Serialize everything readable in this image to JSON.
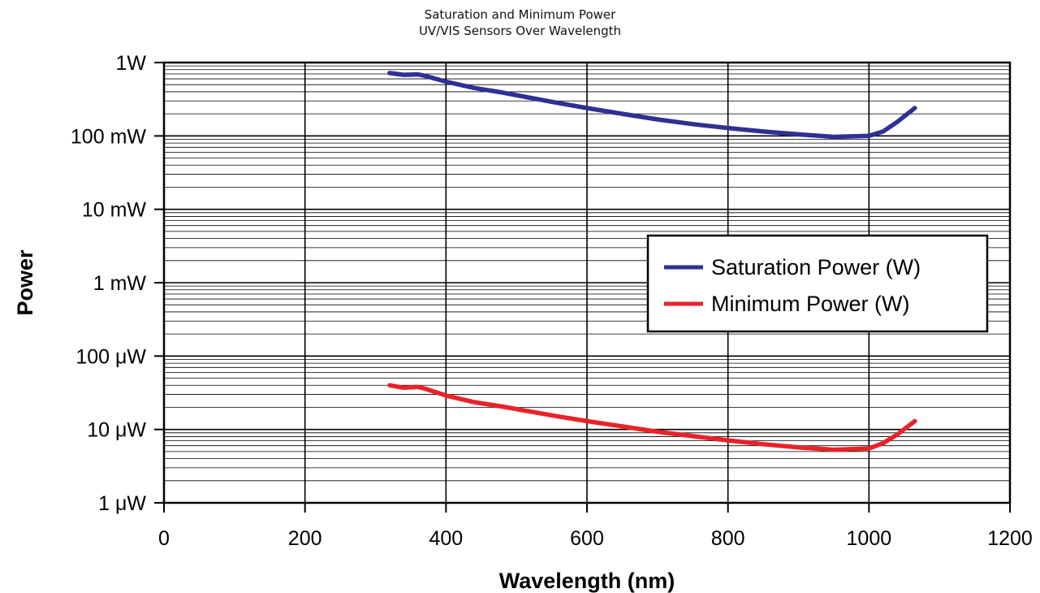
{
  "chart_data": {
    "type": "line",
    "title": [
      "Saturation and Minimum Power",
      "UV/VIS Sensors Over Wavelength"
    ],
    "xlabel": "Wavelength (nm)",
    "ylabel": "Power",
    "xlim": [
      0,
      1200
    ],
    "ylim": [
      1e-06,
      1
    ],
    "y_scale": "log",
    "x_ticks": [
      0,
      200,
      400,
      600,
      800,
      1000,
      1200
    ],
    "x_tick_labels": [
      "0",
      "200",
      "400",
      "600",
      "800",
      "1000",
      "1200"
    ],
    "y_ticks": [
      1e-06,
      1e-05,
      0.0001,
      0.001,
      0.01,
      0.1,
      1
    ],
    "y_tick_labels": [
      "1 μW",
      "10 μW",
      "100 μW",
      "1 mW",
      "10 mW",
      "100 mW",
      "1W"
    ],
    "grid": true,
    "legend_position": "right",
    "series": [
      {
        "name": "Saturation Power (W)",
        "color": "#2e3192",
        "x": [
          320,
          340,
          360,
          370,
          400,
          440,
          480,
          520,
          560,
          600,
          650,
          700,
          750,
          800,
          850,
          900,
          950,
          1000,
          1020,
          1040,
          1065
        ],
        "y": [
          0.72,
          0.68,
          0.69,
          0.66,
          0.55,
          0.45,
          0.39,
          0.33,
          0.28,
          0.24,
          0.2,
          0.168,
          0.145,
          0.128,
          0.115,
          0.105,
          0.097,
          0.1,
          0.115,
          0.155,
          0.24
        ]
      },
      {
        "name": "Minimum Power (W)",
        "color": "#e8232a",
        "x": [
          320,
          340,
          360,
          370,
          400,
          440,
          480,
          520,
          560,
          600,
          650,
          700,
          750,
          800,
          850,
          900,
          950,
          1000,
          1020,
          1040,
          1065
        ],
        "y": [
          4e-05,
          3.7e-05,
          3.8e-05,
          3.6e-05,
          2.9e-05,
          2.35e-05,
          2.05e-05,
          1.75e-05,
          1.5e-05,
          1.3e-05,
          1.1e-05,
          9.3e-06,
          8.1e-06,
          7.1e-06,
          6.3e-06,
          5.7e-06,
          5.3e-06,
          5.5e-06,
          6.5e-06,
          8.5e-06,
          1.3e-05
        ]
      }
    ]
  }
}
